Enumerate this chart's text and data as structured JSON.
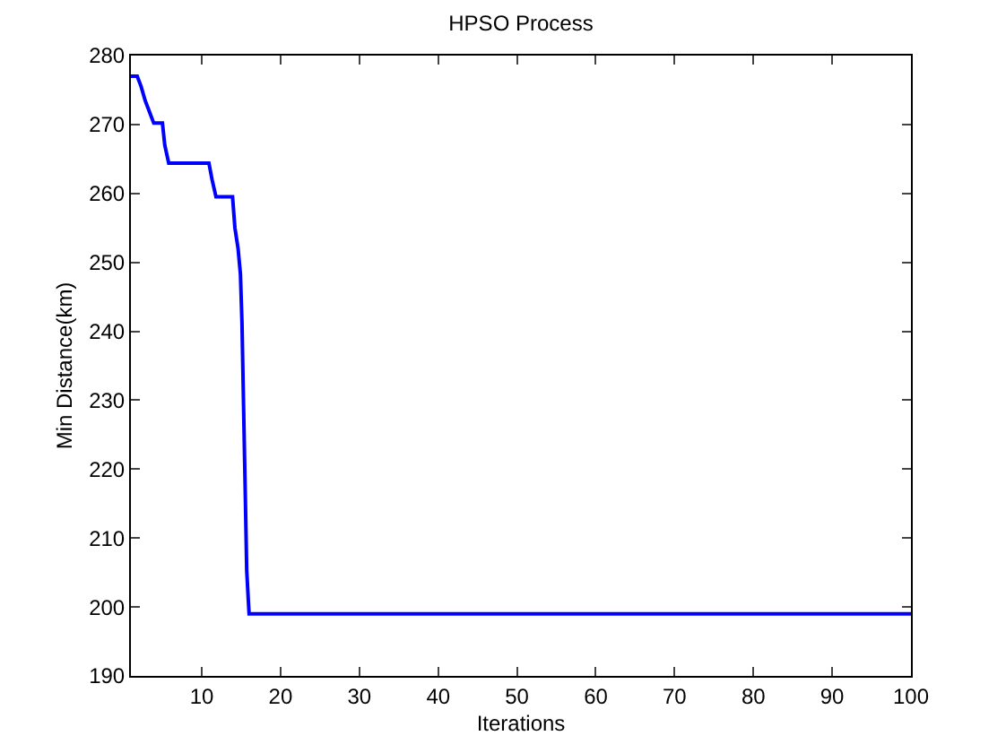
{
  "chart_data": {
    "type": "line",
    "title": "HPSO Process",
    "xlabel": "Iterations",
    "ylabel": "Min Distance(km)",
    "x": [
      1,
      1.8,
      2.3,
      2.8,
      3.3,
      3.9,
      5,
      5.3,
      5.8,
      10.9,
      11.3,
      11.8,
      13.9,
      14.2,
      14.6,
      14.9,
      15.1,
      15.3,
      15.5,
      15.7,
      15.9,
      16,
      100
    ],
    "series": [
      {
        "color": "#0000ff",
        "values": [
          277,
          277,
          275.5,
          273.5,
          272,
          270.2,
          270.2,
          267,
          264.4,
          264.4,
          262,
          259.5,
          259.5,
          255,
          252,
          248.3,
          241.2,
          229.1,
          217.4,
          205.3,
          201,
          199,
          199
        ]
      }
    ],
    "xlim": [
      1,
      100
    ],
    "xticks": [
      10,
      20,
      30,
      40,
      50,
      60,
      70,
      80,
      90,
      100
    ],
    "ylim": [
      190,
      280
    ],
    "yticks": [
      190,
      200,
      210,
      220,
      230,
      240,
      250,
      260,
      270,
      280
    ],
    "marker": "none",
    "line_style": "solid"
  }
}
